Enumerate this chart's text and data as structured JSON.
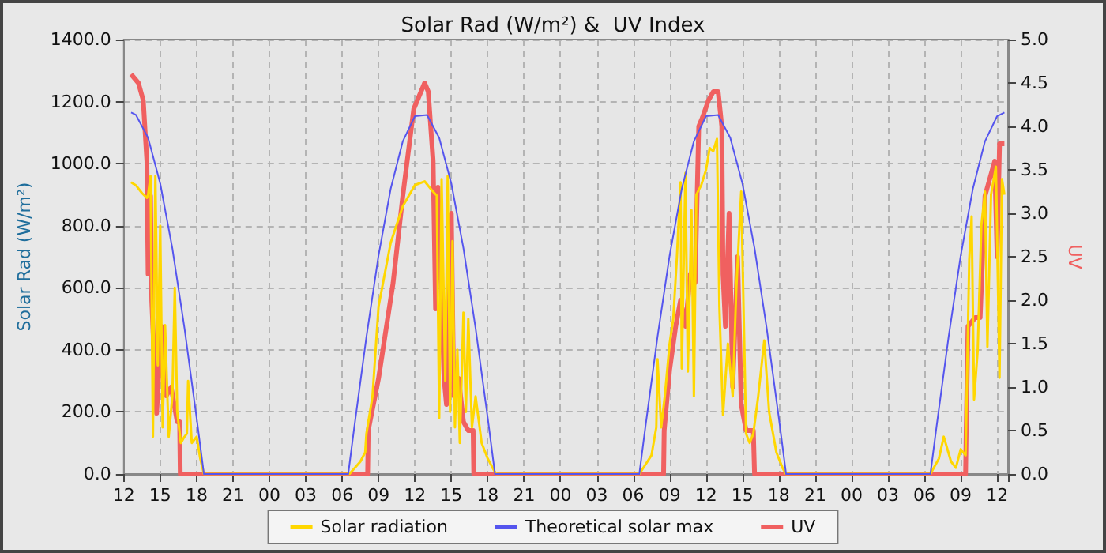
{
  "chart_data": {
    "type": "line",
    "title": "Solar Rad (W/m²) &  UV Index",
    "ylabel": "Solar Rad (W/m²)",
    "y2label": "UV",
    "xlim": [
      12,
      84.9
    ],
    "xticks": [
      {
        "value": 12,
        "label": "12"
      },
      {
        "value": 15,
        "label": "15"
      },
      {
        "value": 18,
        "label": "18"
      },
      {
        "value": 21,
        "label": "21"
      },
      {
        "value": 24,
        "label": "00"
      },
      {
        "value": 27,
        "label": "03"
      },
      {
        "value": 30,
        "label": "06"
      },
      {
        "value": 33,
        "label": "09"
      },
      {
        "value": 36,
        "label": "12"
      },
      {
        "value": 39,
        "label": "15"
      },
      {
        "value": 42,
        "label": "18"
      },
      {
        "value": 45,
        "label": "21"
      },
      {
        "value": 48,
        "label": "00"
      },
      {
        "value": 51,
        "label": "03"
      },
      {
        "value": 54,
        "label": "06"
      },
      {
        "value": 57,
        "label": "09"
      },
      {
        "value": 60,
        "label": "12"
      },
      {
        "value": 63,
        "label": "15"
      },
      {
        "value": 66,
        "label": "18"
      },
      {
        "value": 69,
        "label": "21"
      },
      {
        "value": 72,
        "label": "00"
      },
      {
        "value": 75,
        "label": "03"
      },
      {
        "value": 78,
        "label": "06"
      },
      {
        "value": 81,
        "label": "09"
      },
      {
        "value": 84,
        "label": "12"
      }
    ],
    "ylim": [
      0,
      1400
    ],
    "yticks": [
      {
        "value": 0,
        "label": "0.0"
      },
      {
        "value": 200,
        "label": "200.0"
      },
      {
        "value": 400,
        "label": "400.0"
      },
      {
        "value": 600,
        "label": "600.0"
      },
      {
        "value": 800,
        "label": "800.0"
      },
      {
        "value": 1000,
        "label": "1000.0"
      },
      {
        "value": 1200,
        "label": "1200.0"
      },
      {
        "value": 1400,
        "label": "1400.0"
      }
    ],
    "y2lim": [
      0,
      5
    ],
    "y2ticks": [
      {
        "value": 0,
        "label": "0.0"
      },
      {
        "value": 0.5,
        "label": "0.5"
      },
      {
        "value": 1,
        "label": "1.0"
      },
      {
        "value": 1.5,
        "label": "1.5"
      },
      {
        "value": 2,
        "label": "2.0"
      },
      {
        "value": 2.5,
        "label": "2.5"
      },
      {
        "value": 3,
        "label": "3.0"
      },
      {
        "value": 3.5,
        "label": "3.5"
      },
      {
        "value": 4,
        "label": "4.0"
      },
      {
        "value": 4.5,
        "label": "4.5"
      },
      {
        "value": 5,
        "label": "5.0"
      }
    ],
    "grid": true,
    "legend": "bottom",
    "marker": "none",
    "series": [
      {
        "name": "Solar radiation",
        "color": "#ffd700",
        "x": [
          12.6,
          13.0,
          13.5,
          13.9,
          14.0,
          14.2,
          14.4,
          14.6,
          14.8,
          15.0,
          15.2,
          15.4,
          15.7,
          16.0,
          16.2,
          16.4,
          16.7,
          17.0,
          17.2,
          17.3,
          17.6,
          18.0,
          18.3,
          18.6,
          30.6,
          31.5,
          31.9,
          32.0,
          32.5,
          33.0,
          34.0,
          35.0,
          36.0,
          36.8,
          37.4,
          37.8,
          38.0,
          38.2,
          38.5,
          38.7,
          38.9,
          39.1,
          39.3,
          39.5,
          39.7,
          40.0,
          40.2,
          40.4,
          40.7,
          41.0,
          41.5,
          42.0,
          42.4,
          42.7,
          54.5,
          55.0,
          55.5,
          55.9,
          56.0,
          56.3,
          56.6,
          57.0,
          57.3,
          57.6,
          57.9,
          58.0,
          58.3,
          58.5,
          58.8,
          59.0,
          59.2,
          59.6,
          60.0,
          60.3,
          60.6,
          60.9,
          61.1,
          61.4,
          61.8,
          62.2,
          62.5,
          62.9,
          63.3,
          63.6,
          63.9,
          64.3,
          64.8,
          65.2,
          65.8,
          66.3,
          66.6,
          78.5,
          79.2,
          79.6,
          80.2,
          80.6,
          81.0,
          81.4,
          81.7,
          81.9,
          82.1,
          82.4,
          82.7,
          83.0,
          83.2,
          83.5,
          83.9,
          84.2,
          84.4,
          84.6
        ],
        "values": [
          940,
          930,
          905,
          890,
          900,
          960,
          120,
          960,
          350,
          800,
          150,
          480,
          120,
          250,
          600,
          200,
          100,
          120,
          130,
          300,
          100,
          120,
          50,
          0,
          0,
          40,
          70,
          130,
          250,
          540,
          745,
          863,
          931,
          943,
          914,
          897,
          180,
          950,
          300,
          960,
          200,
          750,
          150,
          400,
          100,
          520,
          200,
          500,
          150,
          250,
          100,
          50,
          20,
          0,
          0,
          30,
          60,
          150,
          370,
          150,
          250,
          420,
          500,
          700,
          940,
          340,
          970,
          330,
          850,
          250,
          900,
          930,
          980,
          1050,
          1040,
          1080,
          540,
          190,
          420,
          250,
          600,
          910,
          130,
          100,
          130,
          250,
          430,
          200,
          70,
          20,
          0,
          0,
          50,
          120,
          40,
          20,
          80,
          60,
          690,
          830,
          240,
          400,
          800,
          910,
          410,
          900,
          990,
          310,
          950,
          900
        ]
      },
      {
        "name": "Theoretical solar max",
        "color": "#5555ee",
        "x": [
          12.6,
          13,
          14,
          15,
          16,
          17,
          18,
          18.6,
          30.5,
          31,
          32,
          33,
          34,
          35,
          36,
          37,
          38,
          39,
          40,
          41,
          42,
          42.6,
          54.5,
          55,
          56,
          57,
          58,
          59,
          60,
          61,
          62,
          63,
          64,
          65,
          66,
          66.6,
          78.5,
          79,
          80,
          81,
          82,
          83,
          84,
          84.6
        ],
        "values": [
          1165,
          1157,
          1083,
          936,
          727,
          470,
          181,
          0,
          0,
          151,
          442,
          704,
          919,
          1072,
          1153,
          1157,
          1083,
          936,
          727,
          470,
          181,
          0,
          0,
          151,
          442,
          704,
          919,
          1072,
          1153,
          1157,
          1083,
          936,
          727,
          470,
          181,
          0,
          0,
          151,
          442,
          704,
          919,
          1072,
          1153,
          1165
        ]
      },
      {
        "name": "UV",
        "color": "#f06060",
        "axis": "y2",
        "x": [
          12.6,
          13.2,
          13.6,
          13.9,
          14.0,
          14.2,
          14.3,
          14.7,
          15.1,
          15.5,
          15.9,
          16.4,
          16.6,
          16.65,
          32.1,
          32.15,
          33.0,
          34.2,
          35.0,
          35.9,
          36.5,
          36.8,
          37.1,
          37.5,
          37.7,
          37.9,
          38.4,
          38.6,
          39.0,
          39.2,
          39.6,
          40.0,
          40.4,
          40.8,
          40.85,
          56.5,
          56.55,
          57.0,
          57.5,
          57.9,
          58.3,
          58.7,
          59.1,
          59.4,
          59.7,
          60.2,
          60.6,
          61.0,
          61.3,
          61.4,
          61.6,
          61.9,
          62.2,
          62.6,
          62.9,
          63.3,
          63.9,
          64.0,
          81.4,
          81.45,
          81.6,
          82.2,
          82.6,
          83.0,
          83.4,
          83.8,
          84.0,
          84.2,
          84.6
        ],
        "values": [
          4.6,
          4.5,
          4.3,
          3.6,
          2.3,
          3.2,
          2.0,
          0.7,
          1.7,
          0.9,
          1.0,
          0.6,
          0.6,
          0,
          0,
          0.5,
          1.1,
          2.2,
          3.2,
          4.2,
          4.4,
          4.5,
          4.4,
          3.6,
          1.9,
          3.3,
          1.1,
          0.8,
          3.0,
          0.9,
          1.1,
          0.6,
          0.5,
          0.5,
          0,
          0,
          0.5,
          1.2,
          1.7,
          2.0,
          1.7,
          2.3,
          2.2,
          4.0,
          4.1,
          4.3,
          4.4,
          4.4,
          4.0,
          2.3,
          1.7,
          3.0,
          1.0,
          2.5,
          0.8,
          0.5,
          0.5,
          0,
          0,
          0.5,
          1.7,
          1.8,
          1.8,
          3.2,
          3.4,
          3.6,
          2.5,
          3.8,
          3.8
        ]
      }
    ]
  }
}
